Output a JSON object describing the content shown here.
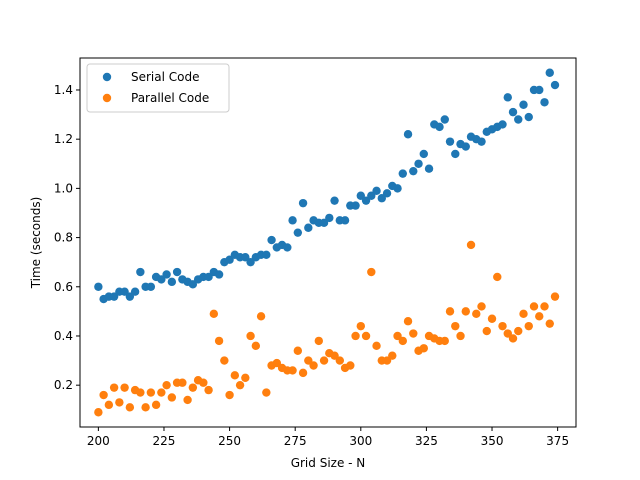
{
  "chart_data": {
    "type": "scatter",
    "xlabel": "Grid Size - N",
    "ylabel": "Time (seconds)",
    "xlim": [
      193,
      382
    ],
    "ylim": [
      0.03,
      1.53
    ],
    "xticks": [
      200,
      225,
      250,
      275,
      300,
      325,
      350,
      375
    ],
    "yticks": [
      0.2,
      0.4,
      0.6,
      0.8,
      1.0,
      1.2,
      1.4
    ],
    "xtick_labels": [
      "200",
      "225",
      "250",
      "275",
      "300",
      "325",
      "350",
      "375"
    ],
    "ytick_labels": [
      "0.2",
      "0.4",
      "0.6",
      "0.8",
      "1.0",
      "1.2",
      "1.4"
    ],
    "grid": false,
    "legend_position": "top-left",
    "series": [
      {
        "name": "Serial Code",
        "color": "#1f77b4",
        "points": [
          [
            200,
            0.6
          ],
          [
            202,
            0.55
          ],
          [
            204,
            0.56
          ],
          [
            206,
            0.56
          ],
          [
            208,
            0.58
          ],
          [
            210,
            0.58
          ],
          [
            212,
            0.56
          ],
          [
            214,
            0.58
          ],
          [
            216,
            0.66
          ],
          [
            218,
            0.6
          ],
          [
            220,
            0.6
          ],
          [
            222,
            0.64
          ],
          [
            224,
            0.63
          ],
          [
            226,
            0.65
          ],
          [
            228,
            0.62
          ],
          [
            230,
            0.66
          ],
          [
            232,
            0.63
          ],
          [
            234,
            0.62
          ],
          [
            236,
            0.61
          ],
          [
            238,
            0.63
          ],
          [
            240,
            0.64
          ],
          [
            242,
            0.64
          ],
          [
            244,
            0.66
          ],
          [
            246,
            0.65
          ],
          [
            248,
            0.7
          ],
          [
            250,
            0.71
          ],
          [
            252,
            0.73
          ],
          [
            254,
            0.72
          ],
          [
            256,
            0.72
          ],
          [
            258,
            0.7
          ],
          [
            260,
            0.72
          ],
          [
            262,
            0.73
          ],
          [
            264,
            0.73
          ],
          [
            266,
            0.79
          ],
          [
            268,
            0.76
          ],
          [
            270,
            0.77
          ],
          [
            272,
            0.76
          ],
          [
            274,
            0.87
          ],
          [
            276,
            0.82
          ],
          [
            278,
            0.94
          ],
          [
            280,
            0.84
          ],
          [
            282,
            0.87
          ],
          [
            284,
            0.86
          ],
          [
            286,
            0.86
          ],
          [
            288,
            0.88
          ],
          [
            290,
            0.95
          ],
          [
            292,
            0.87
          ],
          [
            294,
            0.87
          ],
          [
            296,
            0.93
          ],
          [
            298,
            0.93
          ],
          [
            300,
            0.97
          ],
          [
            302,
            0.95
          ],
          [
            304,
            0.97
          ],
          [
            306,
            0.99
          ],
          [
            308,
            0.96
          ],
          [
            310,
            0.98
          ],
          [
            312,
            1.01
          ],
          [
            314,
            1.0
          ],
          [
            316,
            1.06
          ],
          [
            318,
            1.22
          ],
          [
            320,
            1.07
          ],
          [
            322,
            1.1
          ],
          [
            324,
            1.14
          ],
          [
            326,
            1.08
          ],
          [
            328,
            1.26
          ],
          [
            330,
            1.25
          ],
          [
            332,
            1.28
          ],
          [
            334,
            1.19
          ],
          [
            336,
            1.14
          ],
          [
            338,
            1.18
          ],
          [
            340,
            1.17
          ],
          [
            342,
            1.21
          ],
          [
            344,
            1.2
          ],
          [
            346,
            1.19
          ],
          [
            348,
            1.23
          ],
          [
            350,
            1.24
          ],
          [
            352,
            1.25
          ],
          [
            354,
            1.26
          ],
          [
            356,
            1.37
          ],
          [
            358,
            1.31
          ],
          [
            360,
            1.28
          ],
          [
            362,
            1.34
          ],
          [
            364,
            1.29
          ],
          [
            366,
            1.4
          ],
          [
            368,
            1.4
          ],
          [
            370,
            1.35
          ],
          [
            372,
            1.47
          ],
          [
            374,
            1.42
          ]
        ]
      },
      {
        "name": "Parallel Code",
        "color": "#ff7f0e",
        "points": [
          [
            200,
            0.09
          ],
          [
            202,
            0.16
          ],
          [
            204,
            0.12
          ],
          [
            206,
            0.19
          ],
          [
            208,
            0.13
          ],
          [
            210,
            0.19
          ],
          [
            212,
            0.11
          ],
          [
            214,
            0.18
          ],
          [
            216,
            0.17
          ],
          [
            218,
            0.11
          ],
          [
            220,
            0.17
          ],
          [
            222,
            0.12
          ],
          [
            224,
            0.17
          ],
          [
            226,
            0.2
          ],
          [
            228,
            0.15
          ],
          [
            230,
            0.21
          ],
          [
            232,
            0.21
          ],
          [
            234,
            0.14
          ],
          [
            236,
            0.19
          ],
          [
            238,
            0.22
          ],
          [
            240,
            0.21
          ],
          [
            242,
            0.18
          ],
          [
            244,
            0.49
          ],
          [
            246,
            0.38
          ],
          [
            248,
            0.3
          ],
          [
            250,
            0.16
          ],
          [
            252,
            0.24
          ],
          [
            254,
            0.2
          ],
          [
            256,
            0.23
          ],
          [
            258,
            0.4
          ],
          [
            260,
            0.36
          ],
          [
            262,
            0.48
          ],
          [
            264,
            0.17
          ],
          [
            266,
            0.28
          ],
          [
            268,
            0.29
          ],
          [
            270,
            0.27
          ],
          [
            272,
            0.26
          ],
          [
            274,
            0.26
          ],
          [
            276,
            0.34
          ],
          [
            278,
            0.25
          ],
          [
            280,
            0.3
          ],
          [
            282,
            0.28
          ],
          [
            284,
            0.38
          ],
          [
            286,
            0.3
          ],
          [
            288,
            0.33
          ],
          [
            290,
            0.32
          ],
          [
            292,
            0.3
          ],
          [
            294,
            0.27
          ],
          [
            296,
            0.28
          ],
          [
            298,
            0.4
          ],
          [
            300,
            0.44
          ],
          [
            302,
            0.4
          ],
          [
            304,
            0.66
          ],
          [
            306,
            0.36
          ],
          [
            308,
            0.3
          ],
          [
            310,
            0.3
          ],
          [
            312,
            0.32
          ],
          [
            314,
            0.4
          ],
          [
            316,
            0.38
          ],
          [
            318,
            0.46
          ],
          [
            320,
            0.41
          ],
          [
            322,
            0.34
          ],
          [
            324,
            0.35
          ],
          [
            326,
            0.4
          ],
          [
            328,
            0.39
          ],
          [
            330,
            0.38
          ],
          [
            332,
            0.38
          ],
          [
            334,
            0.5
          ],
          [
            336,
            0.44
          ],
          [
            338,
            0.4
          ],
          [
            340,
            0.5
          ],
          [
            342,
            0.77
          ],
          [
            344,
            0.49
          ],
          [
            346,
            0.52
          ],
          [
            348,
            0.42
          ],
          [
            350,
            0.47
          ],
          [
            352,
            0.64
          ],
          [
            354,
            0.44
          ],
          [
            356,
            0.41
          ],
          [
            358,
            0.39
          ],
          [
            360,
            0.42
          ],
          [
            362,
            0.49
          ],
          [
            364,
            0.44
          ],
          [
            366,
            0.52
          ],
          [
            368,
            0.48
          ],
          [
            370,
            0.52
          ],
          [
            372,
            0.45
          ],
          [
            374,
            0.56
          ]
        ]
      }
    ]
  }
}
